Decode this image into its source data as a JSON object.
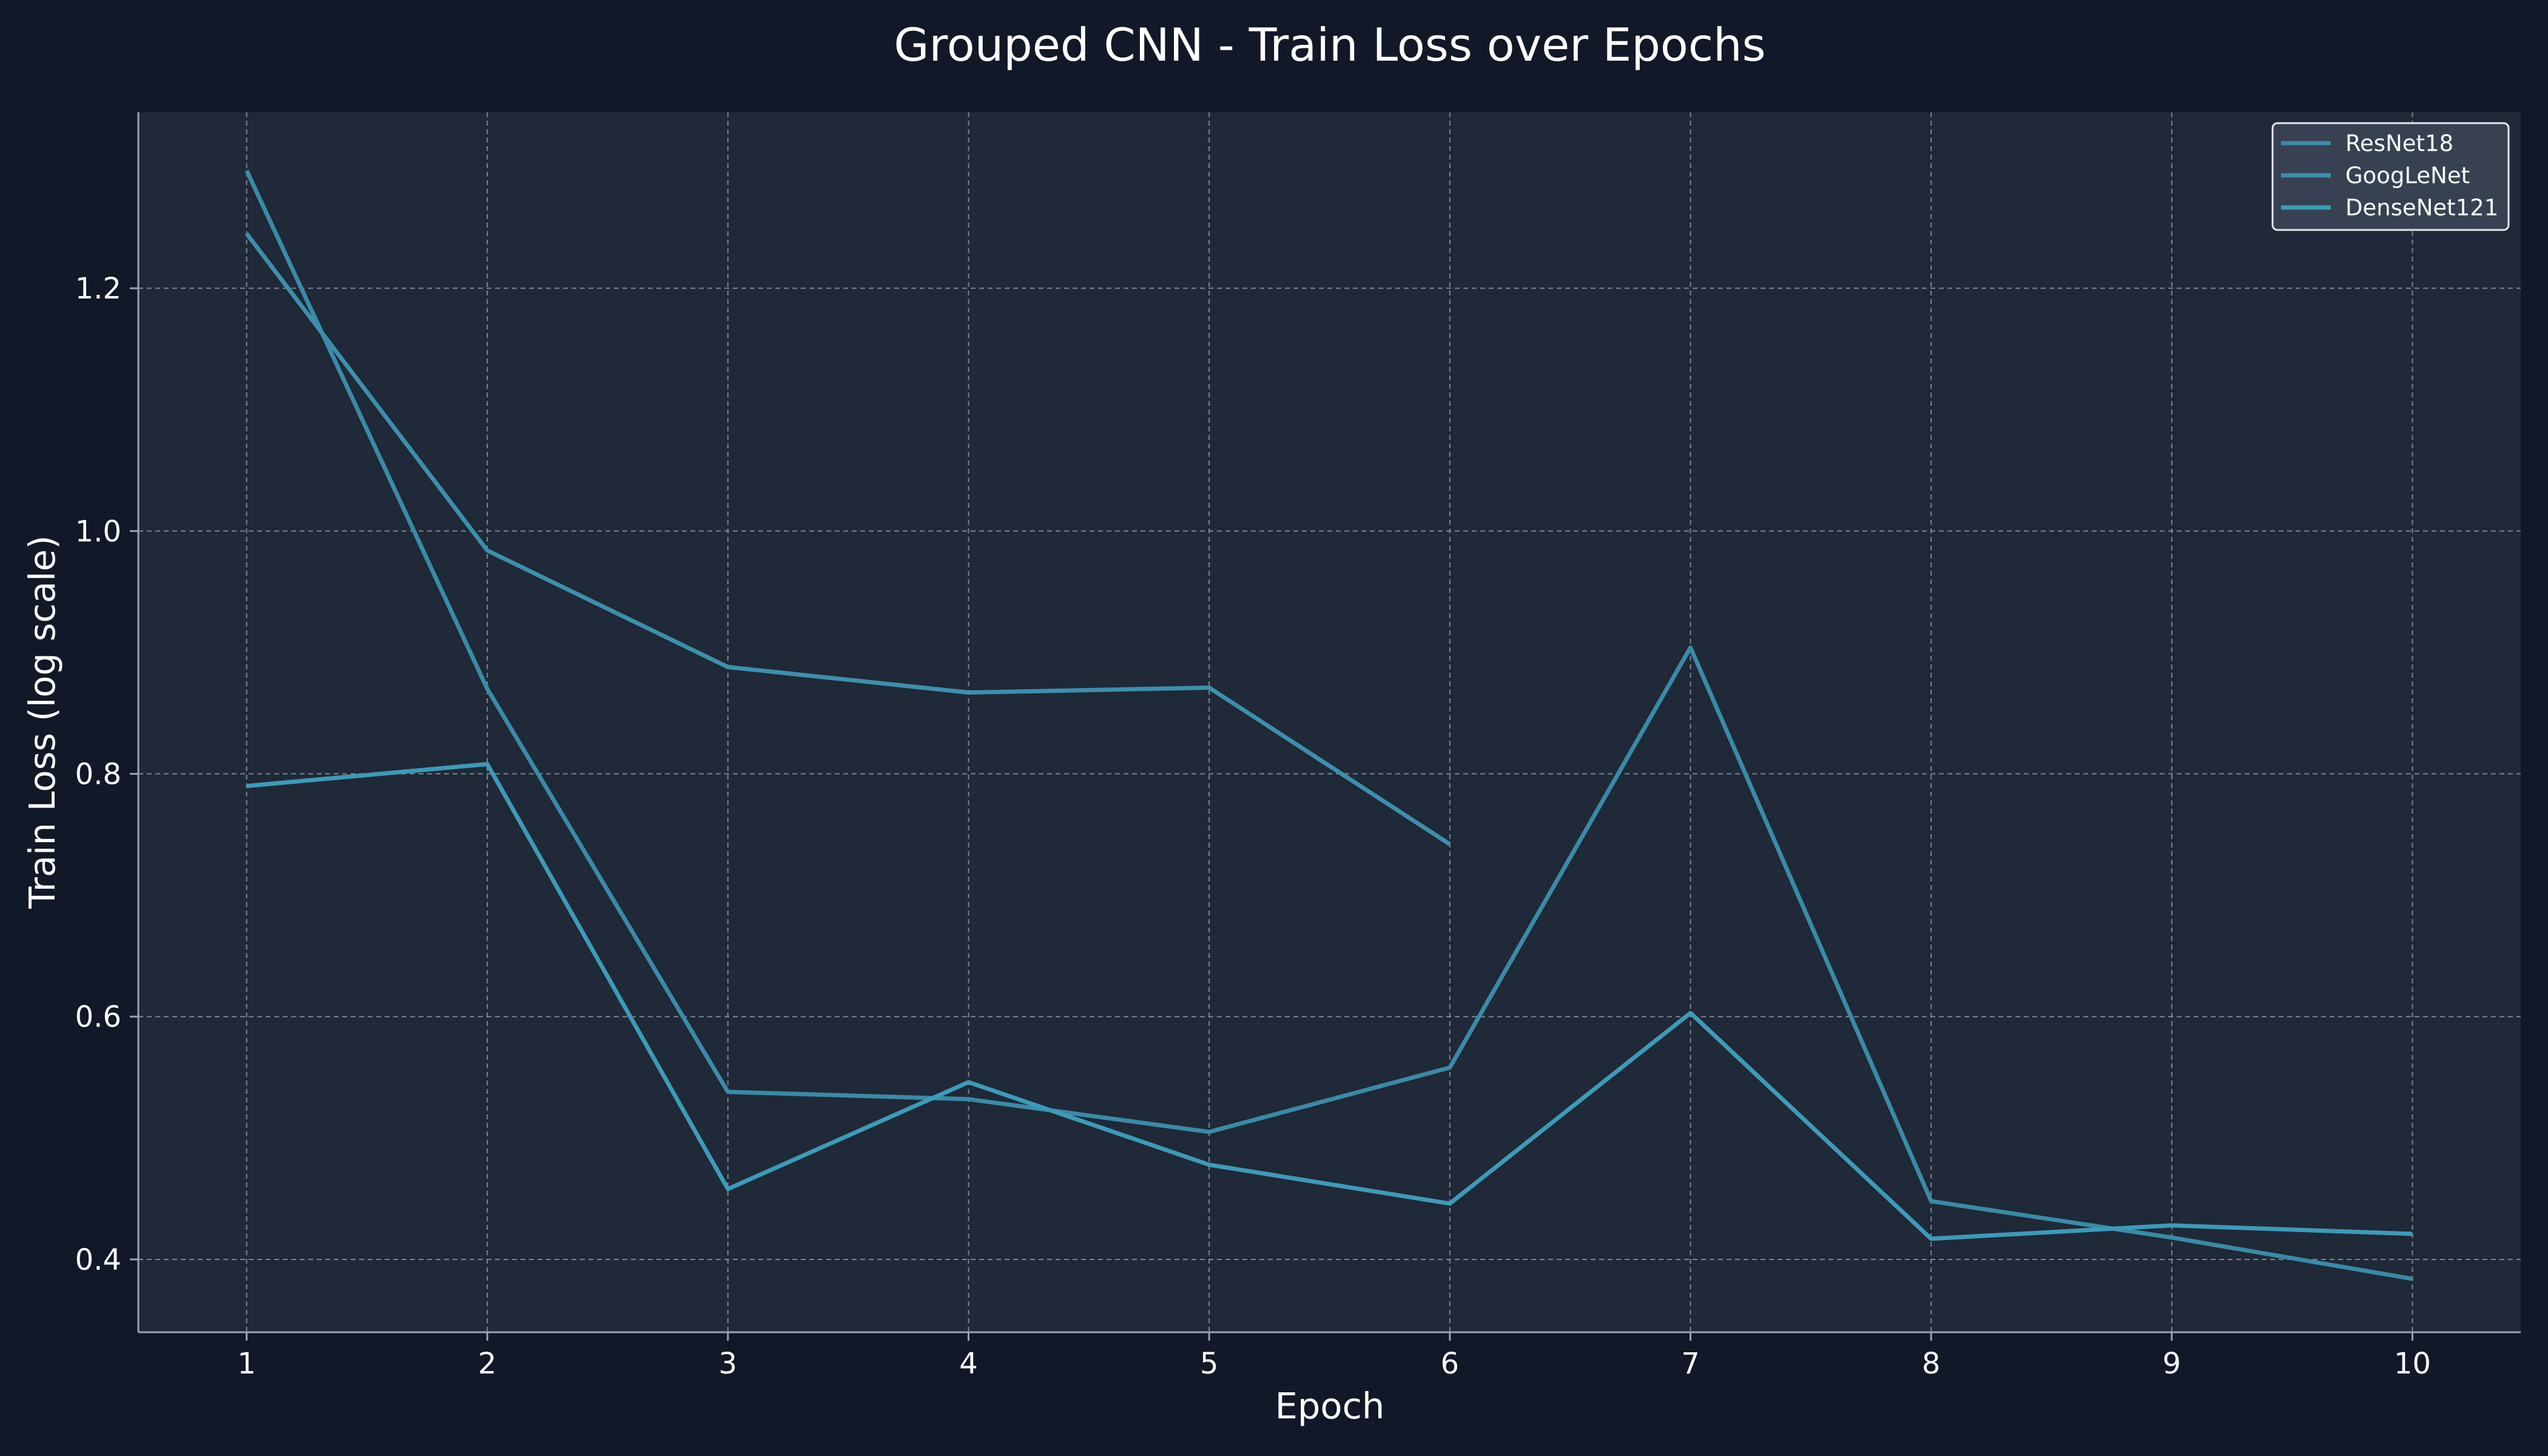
{
  "chart_data": {
    "type": "line",
    "title": "Grouped CNN - Train Loss over Epochs",
    "xlabel": "Epoch",
    "ylabel": "Train Loss (log scale)",
    "x": [
      1,
      2,
      3,
      4,
      5,
      6,
      7,
      8,
      9,
      10
    ],
    "xlim": [
      0.55,
      10.45
    ],
    "ylim": [
      0.34,
      1.345
    ],
    "yticks": [
      0.4,
      0.6,
      0.8,
      1.0,
      1.2
    ],
    "ytick_labels": [
      "0.4",
      "0.6",
      "0.8",
      "1.0",
      "1.2"
    ],
    "xtick_labels": [
      "1",
      "2",
      "3",
      "4",
      "5",
      "6",
      "7",
      "8",
      "9",
      "10"
    ],
    "grid": true,
    "legend_position": "top-right",
    "background": "#111827",
    "plot_background": "#1f2937",
    "series": [
      {
        "name": "ResNet18",
        "color": "#3a8aa8",
        "x": [
          1,
          2,
          3,
          4,
          5,
          6,
          7,
          8,
          9,
          10
        ],
        "values": [
          1.297,
          0.87,
          0.538,
          0.532,
          0.505,
          0.558,
          0.904,
          0.448,
          0.418,
          0.384
        ]
      },
      {
        "name": "GoogLeNet",
        "color": "#3c8fad",
        "x": [
          1,
          2,
          3,
          4,
          5,
          6
        ],
        "values": [
          1.245,
          0.984,
          0.888,
          0.867,
          0.871,
          0.742
        ]
      },
      {
        "name": "DenseNet121",
        "color": "#3d9ab9",
        "x": [
          1,
          2,
          3,
          4,
          5,
          6,
          7,
          8,
          9,
          10
        ],
        "values": [
          0.79,
          0.808,
          0.458,
          0.546,
          0.478,
          0.446,
          0.603,
          0.417,
          0.428,
          0.421
        ]
      }
    ]
  }
}
